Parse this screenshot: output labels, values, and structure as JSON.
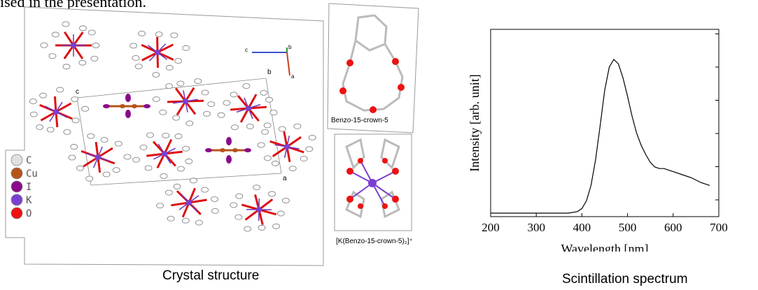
{
  "header": {
    "fragment": "ised in the presentation."
  },
  "captions": {
    "left": "Crystal structure",
    "right": "Scintillation spectrum"
  },
  "structure": {
    "legend": [
      {
        "symbol": "C",
        "color": "#e0e0e0"
      },
      {
        "symbol": "Cu",
        "color": "#b5541b"
      },
      {
        "symbol": "I",
        "color": "#8a0a8a"
      },
      {
        "symbol": "K",
        "color": "#7b3fd0"
      },
      {
        "symbol": "O",
        "color": "#ee1111"
      }
    ],
    "axis_labels": {
      "c": "c",
      "b": "b",
      "a": "a"
    },
    "inset_top_label": "Benzo-15-crown-5",
    "inset_bottom_label": "[K(Benzo-15-crown-5)₂]⁺"
  },
  "chart_data": {
    "type": "line",
    "title": "",
    "xlabel": "Wavelength [nm]",
    "ylabel": "Intensity [arb. unit]",
    "xlim": [
      200,
      700
    ],
    "xticks": [
      "200",
      "300",
      "400",
      "500",
      "600",
      "700"
    ],
    "grid": false,
    "series": [
      {
        "x": [
          200,
          250,
          300,
          350,
          370,
          390,
          400,
          410,
          420,
          430,
          440,
          450,
          460,
          470,
          480,
          490,
          500,
          510,
          520,
          530,
          540,
          550,
          560,
          570,
          580,
          590,
          600,
          620,
          640,
          660,
          680
        ],
        "y": [
          0.0,
          0.0,
          0.0,
          0.0,
          0.0,
          0.01,
          0.03,
          0.08,
          0.18,
          0.35,
          0.57,
          0.8,
          0.95,
          1.0,
          0.97,
          0.88,
          0.76,
          0.63,
          0.52,
          0.44,
          0.38,
          0.33,
          0.3,
          0.29,
          0.29,
          0.28,
          0.27,
          0.25,
          0.23,
          0.2,
          0.18
        ]
      }
    ]
  }
}
